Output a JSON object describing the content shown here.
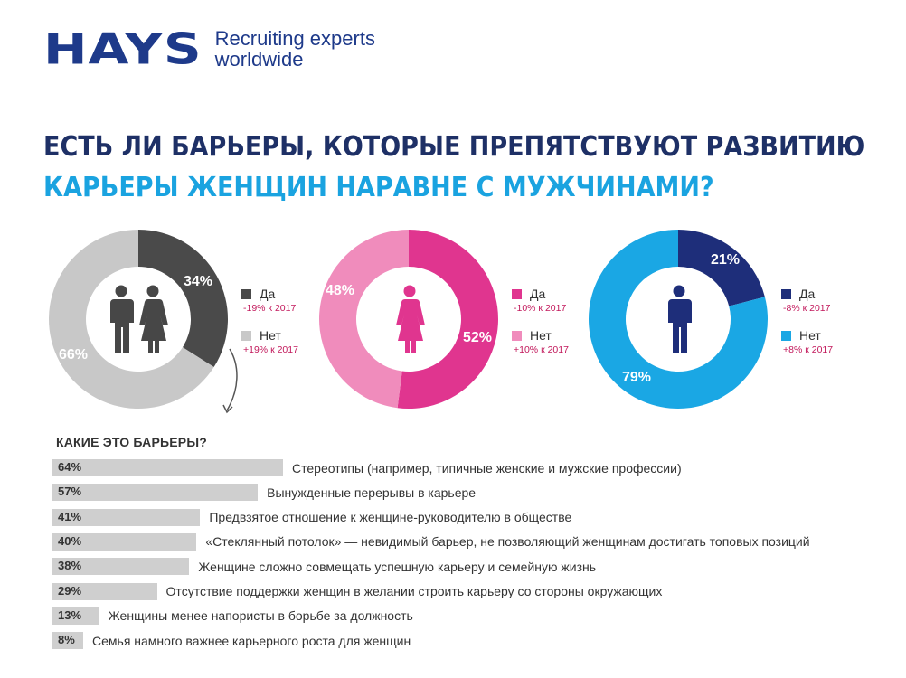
{
  "logo": {
    "word": "HAYS",
    "tagline_line1": "Recruiting experts",
    "tagline_line2": "worldwide"
  },
  "headline": {
    "line1": "ЕСТЬ ЛИ БАРЬЕРЫ, КОТОРЫЕ ПРЕПЯТСТВУЮТ РАЗВИТИЮ",
    "line2": "КАРЬЕРЫ ЖЕНЩИН НАРАВНЕ С МУЖЧИНАМИ?"
  },
  "colors": {
    "brand_navy": "#1e3a8a",
    "heading_dark": "#1e3066",
    "heading_blue": "#1aa3e0",
    "change_text": "#c2185b",
    "bar_gray": "#cfcfcf"
  },
  "icons": [
    "man-and-woman-icon",
    "woman-icon",
    "man-icon",
    "curved-arrow-icon"
  ],
  "chart_data": [
    {
      "type": "pie",
      "donut": true,
      "group": "all",
      "icon": "man-and-woman-icon",
      "slices": [
        {
          "label": "Да",
          "value": 34,
          "pct_text": "34%",
          "color": "#4a4a4a",
          "change": "-19% к 2017"
        },
        {
          "label": "Нет",
          "value": 66,
          "pct_text": "66%",
          "color": "#c8c8c8",
          "change": "+19% к 2017"
        }
      ]
    },
    {
      "type": "pie",
      "donut": true,
      "group": "women",
      "icon": "woman-icon",
      "slices": [
        {
          "label": "Да",
          "value": 52,
          "pct_text": "52%",
          "color": "#e0358f",
          "change": "-10% к 2017"
        },
        {
          "label": "Нет",
          "value": 48,
          "pct_text": "48%",
          "color": "#f08cbc",
          "change": "+10% к 2017"
        }
      ]
    },
    {
      "type": "pie",
      "donut": true,
      "group": "men",
      "icon": "man-icon",
      "slices": [
        {
          "label": "Да",
          "value": 21,
          "pct_text": "21%",
          "color": "#1e2e7a",
          "change": "-8% к 2017"
        },
        {
          "label": "Нет",
          "value": 79,
          "pct_text": "79%",
          "color": "#1aa7e4",
          "change": "+8% к 2017"
        }
      ]
    },
    {
      "type": "bar",
      "orientation": "horizontal",
      "title": "КАКИЕ ЭТО БАРЬЕРЫ?",
      "xlim": [
        0,
        100
      ],
      "bars": [
        {
          "value": 64,
          "value_text": "64%",
          "label": "Стереотипы (например, типичные женские и мужские профессии)"
        },
        {
          "value": 57,
          "value_text": "57%",
          "label": "Вынужденные перерывы в карьере"
        },
        {
          "value": 41,
          "value_text": "41%",
          "label": "Предвзятое отношение к женщине-руководителю в обществе"
        },
        {
          "value": 40,
          "value_text": "40%",
          "label": "«Стеклянный потолок» — невидимый барьер, не позволяющий женщинам достигать топовых позиций"
        },
        {
          "value": 38,
          "value_text": "38%",
          "label": "Женщине сложно совмещать успешную карьеру и семейную жизнь"
        },
        {
          "value": 29,
          "value_text": "29%",
          "label": "Отсутствие поддержки женщин в желании строить карьеру со стороны окружающих"
        },
        {
          "value": 13,
          "value_text": "13%",
          "label": "Женщины менее напористы в борьбе за должность"
        },
        {
          "value": 8,
          "value_text": "8%",
          "label": "Семья намного важнее карьерного роста для женщин"
        }
      ]
    }
  ]
}
